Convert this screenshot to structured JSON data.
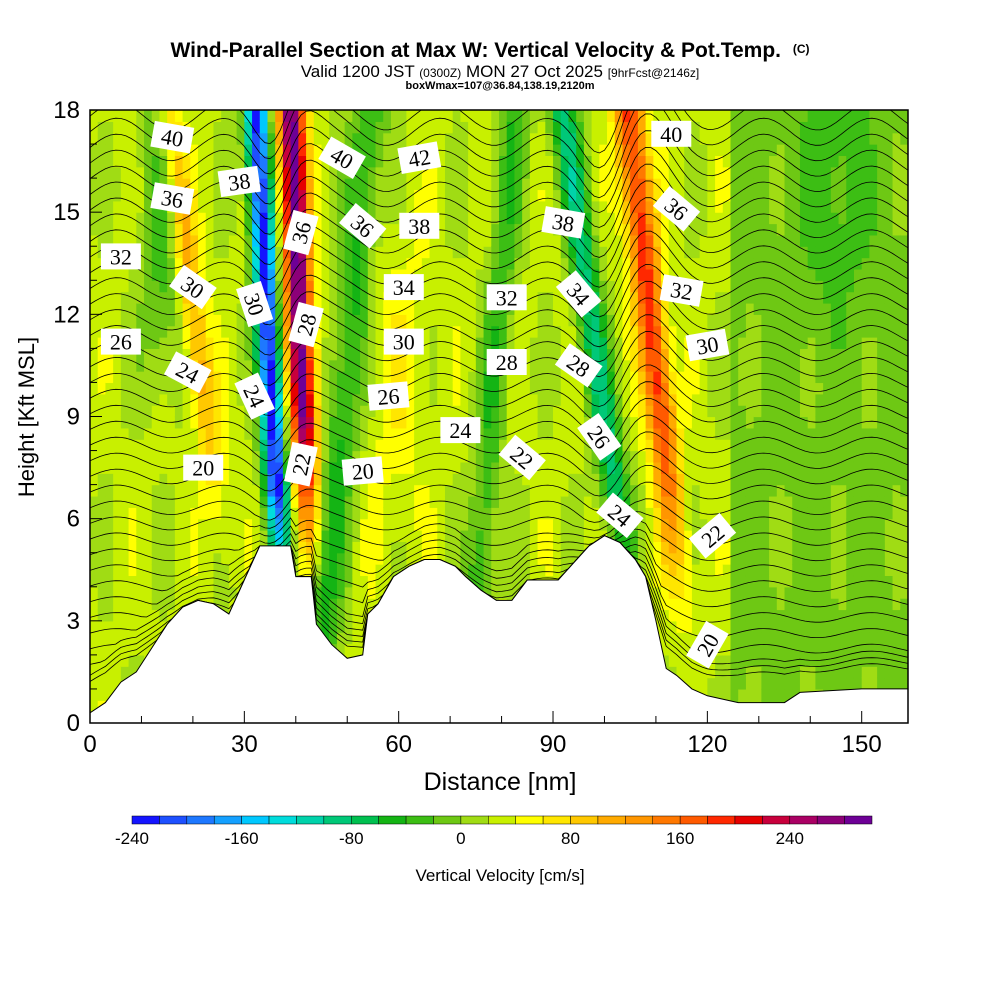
{
  "chart_data": {
    "type": "heatmap",
    "title": "Wind-Parallel Section at Max W: Vertical Velocity & Pot.Temp.",
    "title_mark": "(C)",
    "subtitle_valid": "Valid 1200 JST",
    "subtitle_utc": "(0300Z)",
    "subtitle_date": "MON 27 Oct 2025",
    "subtitle_fcst": "[9hrFcst@2146z]",
    "subtitle_box": "boxWmax=107@36.84,138.19,2120m",
    "xlabel": "Distance [nm]",
    "ylabel": "Height [Kft MSL]",
    "xlim": [
      0,
      159
    ],
    "ylim": [
      0,
      18
    ],
    "x_ticks": [
      0,
      30,
      60,
      90,
      120,
      150
    ],
    "x_tick_labels": [
      "0",
      "30",
      "60",
      "90",
      "120",
      "150"
    ],
    "y_ticks": [
      0,
      3,
      6,
      9,
      12,
      15,
      18
    ],
    "y_tick_labels": [
      "0",
      "3",
      "6",
      "9",
      "12",
      "15",
      "18"
    ],
    "colorbar": {
      "label": "Vertical Velocity [cm/s]",
      "min": -240,
      "max": 300,
      "step": 20,
      "tick_values": [
        -240,
        -160,
        -80,
        0,
        80,
        160,
        240
      ],
      "tick_labels": [
        "-240",
        "-160",
        "-80",
        "0",
        "80",
        "160",
        "240"
      ],
      "colors": [
        "#1414ff",
        "#1e50ff",
        "#1e78ff",
        "#14a0ff",
        "#00c8ff",
        "#00dcdc",
        "#00d2aa",
        "#00c878",
        "#00c050",
        "#14b414",
        "#3cbe14",
        "#6ec814",
        "#a0dc14",
        "#c8f000",
        "#ffff00",
        "#ffe600",
        "#ffc800",
        "#ffaa00",
        "#ff9600",
        "#ff7800",
        "#ff5a00",
        "#ff2800",
        "#e60000",
        "#c8003c",
        "#aa0064",
        "#8c0078",
        "#6e0096"
      ]
    },
    "terrain": [
      [
        0,
        0.3
      ],
      [
        3,
        0.6
      ],
      [
        6,
        1.2
      ],
      [
        9,
        1.5
      ],
      [
        12,
        2.2
      ],
      [
        15,
        2.9
      ],
      [
        18,
        3.4
      ],
      [
        21,
        3.6
      ],
      [
        24,
        3.5
      ],
      [
        27,
        3.2
      ],
      [
        30,
        4.2
      ],
      [
        33,
        5.2
      ],
      [
        36,
        5.2
      ],
      [
        39,
        5.2
      ],
      [
        40,
        4.3
      ],
      [
        43,
        4.3
      ],
      [
        44,
        2.9
      ],
      [
        47,
        2.3
      ],
      [
        50,
        1.9
      ],
      [
        53,
        2.0
      ],
      [
        54,
        3.2
      ],
      [
        56,
        3.5
      ],
      [
        59,
        4.3
      ],
      [
        62,
        4.6
      ],
      [
        65,
        4.8
      ],
      [
        68,
        4.8
      ],
      [
        71,
        4.6
      ],
      [
        73,
        4.3
      ],
      [
        76,
        3.9
      ],
      [
        79,
        3.6
      ],
      [
        82,
        3.6
      ],
      [
        85,
        4.2
      ],
      [
        88,
        4.2
      ],
      [
        91,
        4.2
      ],
      [
        94,
        4.7
      ],
      [
        97,
        5.2
      ],
      [
        100,
        5.5
      ],
      [
        103,
        5.3
      ],
      [
        106,
        4.8
      ],
      [
        108,
        4.3
      ],
      [
        110,
        3.0
      ],
      [
        112,
        1.6
      ],
      [
        114,
        1.4
      ],
      [
        117,
        1.0
      ],
      [
        120,
        0.8
      ],
      [
        126,
        0.6
      ],
      [
        135,
        0.6
      ],
      [
        138,
        0.9
      ],
      [
        150,
        1.0
      ],
      [
        159,
        1.0
      ]
    ],
    "theta_contours": {
      "levels": [
        20,
        22,
        24,
        26,
        28,
        30,
        32,
        34,
        36,
        38,
        40,
        42
      ],
      "labels": [
        {
          "text": "40",
          "x": 16,
          "y": 17.2,
          "rot": 10
        },
        {
          "text": "36",
          "x": 16,
          "y": 15.4,
          "rot": 10
        },
        {
          "text": "32",
          "x": 6,
          "y": 13.7,
          "rot": 0
        },
        {
          "text": "26",
          "x": 6,
          "y": 11.2,
          "rot": 0
        },
        {
          "text": "38",
          "x": 29,
          "y": 15.9,
          "rot": -8
        },
        {
          "text": "30",
          "x": 20,
          "y": 12.8,
          "rot": 35
        },
        {
          "text": "24",
          "x": 19,
          "y": 10.3,
          "rot": 28
        },
        {
          "text": "20",
          "x": 22,
          "y": 7.5,
          "rot": 0
        },
        {
          "text": "30",
          "x": 32,
          "y": 12.3,
          "rot": 72
        },
        {
          "text": "24",
          "x": 32,
          "y": 9.6,
          "rot": 65
        },
        {
          "text": "36",
          "x": 41,
          "y": 14.4,
          "rot": -75
        },
        {
          "text": "28",
          "x": 42,
          "y": 11.7,
          "rot": -75
        },
        {
          "text": "22",
          "x": 41,
          "y": 7.6,
          "rot": -78
        },
        {
          "text": "40",
          "x": 49,
          "y": 16.6,
          "rot": 30
        },
        {
          "text": "42",
          "x": 64,
          "y": 16.6,
          "rot": -10
        },
        {
          "text": "36",
          "x": 53,
          "y": 14.6,
          "rot": 40
        },
        {
          "text": "38",
          "x": 64,
          "y": 14.6,
          "rot": 0
        },
        {
          "text": "34",
          "x": 61,
          "y": 12.8,
          "rot": 0
        },
        {
          "text": "30",
          "x": 61,
          "y": 11.2,
          "rot": 0
        },
        {
          "text": "26",
          "x": 58,
          "y": 9.6,
          "rot": -5
        },
        {
          "text": "20",
          "x": 53,
          "y": 7.4,
          "rot": -5
        },
        {
          "text": "24",
          "x": 72,
          "y": 8.6,
          "rot": 0
        },
        {
          "text": "32",
          "x": 81,
          "y": 12.5,
          "rot": 0
        },
        {
          "text": "28",
          "x": 81,
          "y": 10.6,
          "rot": 0
        },
        {
          "text": "22",
          "x": 84,
          "y": 7.8,
          "rot": 40
        },
        {
          "text": "38",
          "x": 92,
          "y": 14.7,
          "rot": 10
        },
        {
          "text": "34",
          "x": 95,
          "y": 12.6,
          "rot": 50
        },
        {
          "text": "28",
          "x": 95,
          "y": 10.5,
          "rot": 35
        },
        {
          "text": "26",
          "x": 99,
          "y": 8.4,
          "rot": 55
        },
        {
          "text": "24",
          "x": 103,
          "y": 6.1,
          "rot": 40
        },
        {
          "text": "40",
          "x": 113,
          "y": 17.3,
          "rot": 0
        },
        {
          "text": "36",
          "x": 114,
          "y": 15.1,
          "rot": 40
        },
        {
          "text": "32",
          "x": 115,
          "y": 12.7,
          "rot": 10
        },
        {
          "text": "30",
          "x": 120,
          "y": 11.1,
          "rot": -10
        },
        {
          "text": "22",
          "x": 121,
          "y": 5.5,
          "rot": -40
        },
        {
          "text": "20",
          "x": 120,
          "y": 2.3,
          "rot": -60
        }
      ]
    }
  }
}
